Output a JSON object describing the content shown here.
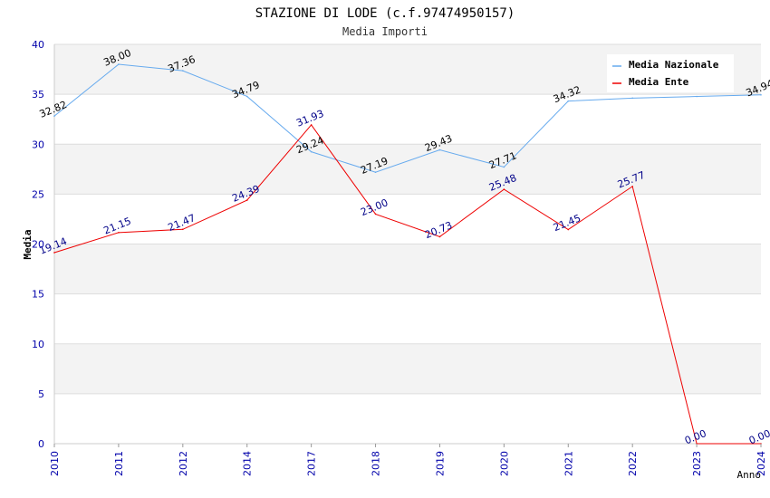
{
  "chart_data": {
    "type": "line",
    "title": "STAZIONE DI LODE (c.f.97474950157)",
    "subtitle": "Media Importi",
    "xlabel": "Anno",
    "ylabel": "Media",
    "categories": [
      "2010",
      "2011",
      "2012",
      "2014",
      "2017",
      "2018",
      "2019",
      "2020",
      "2021",
      "2022",
      "2023",
      "2024"
    ],
    "yticks": [
      "0",
      "5",
      "10",
      "15",
      "20",
      "25",
      "30",
      "35",
      "40"
    ],
    "ylim": [
      0,
      40
    ],
    "grid": true,
    "legend_position": "top-right",
    "series": [
      {
        "name": "Media Nazionale",
        "color": "#66aaee",
        "label_color": "#000000",
        "values": [
          32.82,
          38.0,
          37.36,
          34.79,
          29.24,
          27.19,
          29.43,
          27.71,
          34.32,
          34.62,
          34.78,
          34.94
        ],
        "labels": [
          "32.82",
          "38.00",
          "37.36",
          "34.79",
          "29.24",
          "27.19",
          "29.43",
          "27.71",
          "34.32",
          "",
          "",
          "34.94"
        ]
      },
      {
        "name": "Media Ente",
        "color": "#ee0000",
        "label_color": "#000088",
        "values": [
          19.14,
          21.15,
          21.47,
          24.39,
          31.93,
          23.0,
          20.73,
          25.48,
          21.45,
          25.77,
          0.0,
          0.0
        ],
        "labels": [
          "19.14",
          "21.15",
          "21.47",
          "24.39",
          "31.93",
          "23.00",
          "20.73",
          "25.48",
          "21.45",
          "25.77",
          "0.00",
          "0.00"
        ]
      }
    ]
  }
}
